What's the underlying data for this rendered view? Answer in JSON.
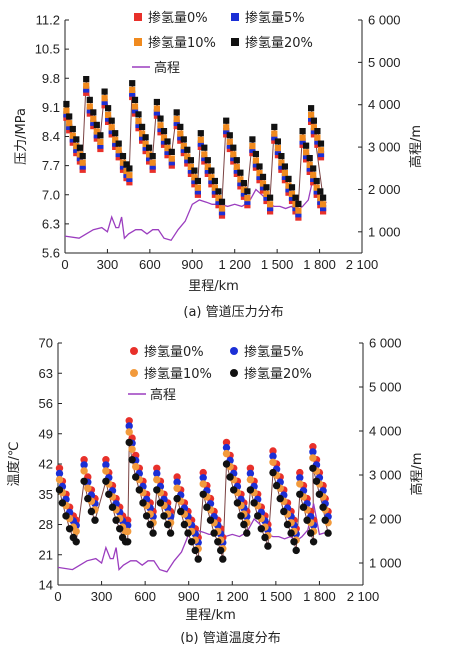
{
  "chart_data": [
    {
      "type": "scatter",
      "caption": "(a) 管道压力分布",
      "xlabel": "里程/km",
      "ylabel": "压力/MPa",
      "y2label": "高程/m",
      "xlim": [
        0,
        2100
      ],
      "ylim": [
        5.6,
        11.2
      ],
      "y2lim": [
        500,
        6000
      ],
      "xticks": [
        0,
        300,
        600,
        900,
        1200,
        1500,
        1800,
        2100
      ],
      "xtick_labels": [
        "0",
        "300",
        "600",
        "900",
        "1 200",
        "1 500",
        "1 800",
        "2 100"
      ],
      "yticks": [
        5.6,
        6.3,
        7.0,
        7.7,
        8.4,
        9.1,
        9.8,
        10.5,
        11.2
      ],
      "ytick_labels": [
        "5.6",
        "6.3",
        "7.0",
        "7.7",
        "8.4",
        "9.1",
        "9.8",
        "10.5",
        "11.2"
      ],
      "y2ticks": [
        1000,
        2000,
        3000,
        4000,
        5000,
        6000
      ],
      "y2tick_labels": [
        "1 000",
        "2 000",
        "3 000",
        "4 000",
        "5 000",
        "6 000"
      ],
      "marker": "square",
      "legend_position": "top",
      "series": [
        {
          "name": "掺氢量0%",
          "color": "#e8302a",
          "offset": 0.0,
          "values": [
            8.85,
            8.55,
            8.25,
            8.0,
            7.8,
            7.6,
            9.45,
            8.95,
            8.65,
            8.35,
            8.1,
            9.15,
            8.75,
            8.45,
            8.15,
            7.9,
            7.6,
            7.4,
            7.3,
            9.35,
            8.95,
            8.6,
            8.3,
            8.05,
            7.8,
            7.6,
            8.9,
            8.5,
            8.2,
            7.95,
            7.7,
            8.65,
            8.3,
            8.0,
            7.75,
            7.5,
            7.25,
            7.0,
            8.15,
            7.8,
            7.5,
            7.25,
            7.0,
            6.75,
            6.5,
            8.45,
            8.1,
            7.8,
            7.5,
            7.2,
            6.95,
            6.75,
            8.0,
            7.65,
            7.35,
            7.1,
            6.85,
            6.6,
            8.3,
            7.95,
            7.6,
            7.35,
            7.05,
            6.85,
            6.6,
            6.45,
            8.2,
            7.85,
            7.55,
            7.3,
            7.0,
            6.75,
            6.6,
            8.75,
            8.45,
            8.2,
            7.9
          ]
        },
        {
          "name": "掺氢量5%",
          "color": "#1b2fd6",
          "offset": 0.08,
          "values": [
            8.85,
            8.55,
            8.25,
            8.0,
            7.8,
            7.6,
            9.45,
            8.95,
            8.65,
            8.35,
            8.1,
            9.15,
            8.75,
            8.45,
            8.15,
            7.9,
            7.6,
            7.4,
            7.3,
            9.35,
            8.95,
            8.6,
            8.3,
            8.05,
            7.8,
            7.6,
            8.9,
            8.5,
            8.2,
            7.95,
            7.7,
            8.65,
            8.3,
            8.0,
            7.75,
            7.5,
            7.25,
            7.0,
            8.15,
            7.8,
            7.5,
            7.25,
            7.0,
            6.75,
            6.5,
            8.45,
            8.1,
            7.8,
            7.5,
            7.2,
            6.95,
            6.75,
            8.0,
            7.65,
            7.35,
            7.1,
            6.85,
            6.6,
            8.3,
            7.95,
            7.6,
            7.35,
            7.05,
            6.85,
            6.6,
            6.45,
            8.2,
            7.85,
            7.55,
            7.3,
            7.0,
            6.75,
            6.6,
            8.75,
            8.45,
            8.2,
            7.9
          ]
        },
        {
          "name": "掺氢量10%",
          "color": "#f08a1e",
          "offset": 0.17,
          "values": [
            8.85,
            8.55,
            8.25,
            8.0,
            7.8,
            7.6,
            9.45,
            8.95,
            8.65,
            8.35,
            8.1,
            9.15,
            8.75,
            8.45,
            8.15,
            7.9,
            7.6,
            7.4,
            7.3,
            9.35,
            8.95,
            8.6,
            8.3,
            8.05,
            7.8,
            7.6,
            8.9,
            8.5,
            8.2,
            7.95,
            7.7,
            8.65,
            8.3,
            8.0,
            7.75,
            7.5,
            7.25,
            7.0,
            8.15,
            7.8,
            7.5,
            7.25,
            7.0,
            6.75,
            6.5,
            8.45,
            8.1,
            7.8,
            7.5,
            7.2,
            6.95,
            6.75,
            8.0,
            7.65,
            7.35,
            7.1,
            6.85,
            6.6,
            8.3,
            7.95,
            7.6,
            7.35,
            7.05,
            6.85,
            6.6,
            6.45,
            8.2,
            7.85,
            7.55,
            7.3,
            7.0,
            6.75,
            6.6,
            8.75,
            8.45,
            8.2,
            7.9
          ]
        },
        {
          "name": "掺氢量20%",
          "color": "#111111",
          "offset": 0.33,
          "values": [
            8.85,
            8.55,
            8.25,
            8.0,
            7.8,
            7.6,
            9.45,
            8.95,
            8.65,
            8.35,
            8.1,
            9.15,
            8.75,
            8.45,
            8.15,
            7.9,
            7.6,
            7.4,
            7.3,
            9.35,
            8.95,
            8.6,
            8.3,
            8.05,
            7.8,
            7.6,
            8.9,
            8.5,
            8.2,
            7.95,
            7.7,
            8.65,
            8.3,
            8.0,
            7.75,
            7.5,
            7.25,
            7.0,
            8.15,
            7.8,
            7.5,
            7.25,
            7.0,
            6.75,
            6.5,
            8.45,
            8.1,
            7.8,
            7.5,
            7.2,
            6.95,
            6.75,
            8.0,
            7.65,
            7.35,
            7.1,
            6.85,
            6.6,
            8.3,
            7.95,
            7.6,
            7.35,
            7.05,
            6.85,
            6.6,
            6.45,
            8.2,
            7.85,
            7.55,
            7.3,
            7.0,
            6.75,
            6.6,
            8.75,
            8.45,
            8.2,
            7.9
          ]
        }
      ],
      "x": [
        10,
        30,
        55,
        80,
        105,
        125,
        150,
        175,
        200,
        225,
        250,
        280,
        305,
        330,
        355,
        380,
        410,
        435,
        455,
        475,
        495,
        520,
        545,
        570,
        595,
        620,
        650,
        675,
        700,
        725,
        755,
        790,
        815,
        840,
        865,
        890,
        915,
        940,
        960,
        985,
        1010,
        1035,
        1060,
        1085,
        1110,
        1140,
        1165,
        1190,
        1215,
        1240,
        1265,
        1290,
        1325,
        1350,
        1375,
        1400,
        1425,
        1450,
        1480,
        1505,
        1530,
        1555,
        1580,
        1605,
        1630,
        1650,
        1680,
        1705,
        1730,
        1755,
        1780,
        1805,
        1825,
        1740,
        1760,
        1785,
        1810
      ],
      "elevation": {
        "name": "高程",
        "color": "#9b3dbf",
        "x": [
          0,
          100,
          150,
          200,
          260,
          300,
          330,
          360,
          380,
          400,
          420,
          450,
          500,
          540,
          580,
          620,
          660,
          700,
          750,
          800,
          850,
          900,
          950,
          1000,
          1040,
          1080,
          1100,
          1150,
          1200,
          1250,
          1300,
          1350,
          1400,
          1440,
          1480,
          1520,
          1560,
          1600,
          1640,
          1680,
          1720,
          1760,
          1800,
          1850
        ],
        "values": [
          900,
          850,
          950,
          1050,
          1100,
          1000,
          1350,
          1100,
          1100,
          1350,
          850,
          950,
          1050,
          1050,
          950,
          1050,
          1050,
          850,
          800,
          1050,
          1250,
          1650,
          1750,
          1700,
          1650,
          1650,
          1650,
          1600,
          1650,
          1600,
          1700,
          2000,
          1850,
          1650,
          1600,
          1600,
          1550,
          1600,
          1500,
          1600,
          1750,
          2350,
          1650,
          1700
        ]
      }
    },
    {
      "type": "scatter",
      "caption": "(b) 管道温度分布",
      "xlabel": "里程/km",
      "ylabel": "温度/℃",
      "y2label": "高程/m",
      "xlim": [
        0,
        2100
      ],
      "ylim": [
        14,
        70
      ],
      "y2lim": [
        500,
        6000
      ],
      "xticks": [
        0,
        300,
        600,
        900,
        1200,
        1500,
        1800,
        2100
      ],
      "xtick_labels": [
        "0",
        "300",
        "600",
        "900",
        "1 200",
        "1 500",
        "1 800",
        "2 100"
      ],
      "yticks": [
        14,
        21,
        28,
        35,
        42,
        49,
        56,
        63,
        70
      ],
      "ytick_labels": [
        "14",
        "21",
        "28",
        "35",
        "42",
        "49",
        "56",
        "63",
        "70"
      ],
      "y2ticks": [
        1000,
        2000,
        3000,
        4000,
        5000,
        6000
      ],
      "y2tick_labels": [
        "1 000",
        "2 000",
        "3 000",
        "4 000",
        "5 000",
        "6 000"
      ],
      "marker": "circle",
      "legend_position": "top",
      "series": [
        {
          "name": "掺氢量0%",
          "color": "#e8302a",
          "offset": 0.0,
          "values": [
            41,
            38,
            35,
            32,
            30,
            29,
            43,
            39,
            36,
            34,
            43,
            40,
            37,
            34,
            32,
            30,
            29,
            29,
            52,
            48,
            44,
            41,
            38,
            35,
            33,
            31,
            41,
            38,
            35,
            33,
            31,
            39,
            36,
            33,
            31,
            29,
            27,
            25,
            40,
            37,
            34,
            31,
            29,
            27,
            25,
            47,
            44,
            41,
            38,
            35,
            33,
            31,
            41,
            38,
            35,
            32,
            30,
            28,
            45,
            42,
            39,
            36,
            33,
            31,
            29,
            27,
            40,
            37,
            34,
            31,
            29,
            46,
            43,
            40,
            37,
            34,
            31
          ]
        },
        {
          "name": "掺氢量5%",
          "color": "#1b2fd6",
          "offset": -1.2,
          "values": [
            41,
            38,
            35,
            32,
            30,
            29,
            43,
            39,
            36,
            34,
            43,
            40,
            37,
            34,
            32,
            30,
            29,
            29,
            52,
            48,
            44,
            41,
            38,
            35,
            33,
            31,
            41,
            38,
            35,
            33,
            31,
            39,
            36,
            33,
            31,
            29,
            27,
            25,
            40,
            37,
            34,
            31,
            29,
            27,
            25,
            47,
            44,
            41,
            38,
            35,
            33,
            31,
            41,
            38,
            35,
            32,
            30,
            28,
            45,
            42,
            39,
            36,
            33,
            31,
            29,
            27,
            40,
            37,
            34,
            31,
            29,
            46,
            43,
            40,
            37,
            34,
            31
          ]
        },
        {
          "name": "掺氢量10%",
          "color": "#f29a3c",
          "offset": -2.6,
          "values": [
            41,
            38,
            35,
            32,
            30,
            29,
            43,
            39,
            36,
            34,
            43,
            40,
            37,
            34,
            32,
            30,
            29,
            29,
            52,
            48,
            44,
            41,
            38,
            35,
            33,
            31,
            41,
            38,
            35,
            33,
            31,
            39,
            36,
            33,
            31,
            29,
            27,
            25,
            40,
            37,
            34,
            31,
            29,
            27,
            25,
            47,
            44,
            41,
            38,
            35,
            33,
            31,
            41,
            38,
            35,
            32,
            30,
            28,
            45,
            42,
            39,
            36,
            33,
            31,
            29,
            27,
            40,
            37,
            34,
            31,
            29,
            46,
            43,
            40,
            37,
            34,
            31
          ]
        },
        {
          "name": "掺氢量20%",
          "color": "#111111",
          "offset": -5.0,
          "values": [
            41,
            38,
            35,
            32,
            30,
            29,
            43,
            39,
            36,
            34,
            43,
            40,
            37,
            34,
            32,
            30,
            29,
            29,
            52,
            48,
            44,
            41,
            38,
            35,
            33,
            31,
            41,
            38,
            35,
            33,
            31,
            39,
            36,
            33,
            31,
            29,
            27,
            25,
            40,
            37,
            34,
            31,
            29,
            27,
            25,
            47,
            44,
            41,
            38,
            35,
            33,
            31,
            41,
            38,
            35,
            32,
            30,
            28,
            45,
            42,
            39,
            36,
            33,
            31,
            29,
            27,
            40,
            37,
            34,
            31,
            29,
            46,
            43,
            40,
            37,
            34,
            31
          ]
        }
      ],
      "x": [
        10,
        30,
        55,
        80,
        105,
        125,
        180,
        205,
        230,
        255,
        330,
        350,
        375,
        400,
        425,
        445,
        465,
        480,
        490,
        510,
        535,
        560,
        585,
        610,
        635,
        655,
        680,
        705,
        730,
        755,
        775,
        820,
        845,
        870,
        895,
        920,
        945,
        965,
        1000,
        1025,
        1050,
        1075,
        1100,
        1120,
        1135,
        1160,
        1185,
        1210,
        1235,
        1260,
        1280,
        1300,
        1325,
        1350,
        1375,
        1400,
        1425,
        1445,
        1480,
        1505,
        1530,
        1555,
        1580,
        1605,
        1625,
        1640,
        1665,
        1690,
        1715,
        1740,
        1760,
        1755,
        1780,
        1800,
        1825,
        1840,
        1860
      ],
      "elevation": {
        "name": "高程",
        "color": "#9b3dbf",
        "x": [
          0,
          100,
          150,
          200,
          260,
          300,
          330,
          360,
          380,
          400,
          420,
          450,
          500,
          540,
          580,
          620,
          660,
          700,
          750,
          800,
          850,
          900,
          950,
          1000,
          1040,
          1080,
          1100,
          1150,
          1200,
          1250,
          1300,
          1350,
          1400,
          1440,
          1480,
          1520,
          1560,
          1600,
          1640,
          1680,
          1720,
          1760,
          1800,
          1850
        ],
        "values": [
          900,
          850,
          950,
          1050,
          1100,
          1000,
          1350,
          1100,
          1100,
          1350,
          850,
          950,
          1050,
          1050,
          950,
          1050,
          1050,
          850,
          800,
          1050,
          1250,
          1650,
          1750,
          1700,
          1650,
          1650,
          1650,
          1600,
          1650,
          1600,
          1700,
          2000,
          1850,
          1650,
          1600,
          1600,
          1550,
          1600,
          1500,
          1600,
          1750,
          2350,
          1650,
          1700
        ]
      }
    }
  ]
}
